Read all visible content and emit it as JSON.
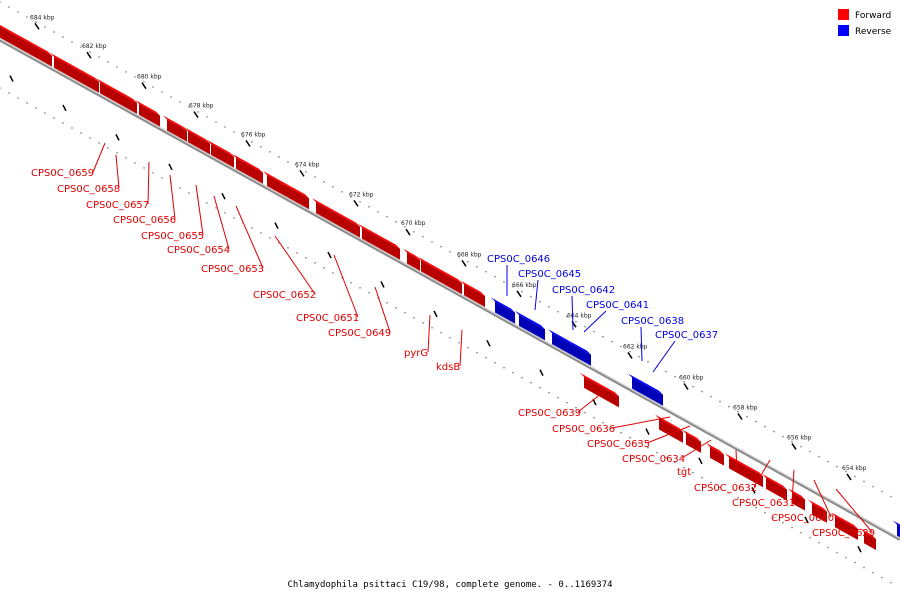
{
  "caption": "Chlamydophila psittaci C19/98, complete genome. - 0..1169374",
  "legend": {
    "items": [
      {
        "label": "Forward",
        "color": "#ff0000"
      },
      {
        "label": "Reverse",
        "color": "#0000ff"
      }
    ]
  },
  "ruler": {
    "labels": [
      "684 kbp",
      "682 kbp",
      "680 kbp",
      "678 kbp",
      "676 kbp",
      "674 kbp",
      "672 kbp",
      "670 kbp",
      "668 kbp",
      "666 kbp",
      "664 kbp",
      "662 kbp",
      "660 kbp",
      "658 kbp",
      "656 kbp",
      "654 kbp"
    ]
  },
  "genes": [
    {
      "name": "CPS0C_0659",
      "strand": "forward"
    },
    {
      "name": "CPS0C_0658",
      "strand": "forward"
    },
    {
      "name": "CPS0C_0657",
      "strand": "forward"
    },
    {
      "name": "CPS0C_0656",
      "strand": "forward"
    },
    {
      "name": "CPS0C_0655",
      "strand": "forward"
    },
    {
      "name": "CPS0C_0654",
      "strand": "forward"
    },
    {
      "name": "CPS0C_0653",
      "strand": "forward"
    },
    {
      "name": "CPS0C_0652",
      "strand": "forward"
    },
    {
      "name": "CPS0C_0651",
      "strand": "forward"
    },
    {
      "name": "CPS0C_0649",
      "strand": "forward"
    },
    {
      "name": "pyrG",
      "strand": "forward"
    },
    {
      "name": "kdsB",
      "strand": "forward"
    },
    {
      "name": "CPS0C_0646",
      "strand": "reverse"
    },
    {
      "name": "CPS0C_0645",
      "strand": "reverse"
    },
    {
      "name": "CPS0C_0642",
      "strand": "reverse"
    },
    {
      "name": "CPS0C_0641",
      "strand": "reverse"
    },
    {
      "name": "CPS0C_0638",
      "strand": "reverse"
    },
    {
      "name": "CPS0C_0637",
      "strand": "reverse"
    },
    {
      "name": "CPS0C_0639",
      "strand": "forward"
    },
    {
      "name": "CPS0C_0636",
      "strand": "forward"
    },
    {
      "name": "CPS0C_0635",
      "strand": "forward"
    },
    {
      "name": "CPS0C_0634",
      "strand": "forward"
    },
    {
      "name": "tgt",
      "strand": "forward"
    },
    {
      "name": "CPS0C_0632",
      "strand": "forward"
    },
    {
      "name": "CPS0C_0631",
      "strand": "forward"
    },
    {
      "name": "CPS0C_0630",
      "strand": "forward"
    },
    {
      "name": "CPS0C_0629",
      "strand": "forward"
    }
  ]
}
